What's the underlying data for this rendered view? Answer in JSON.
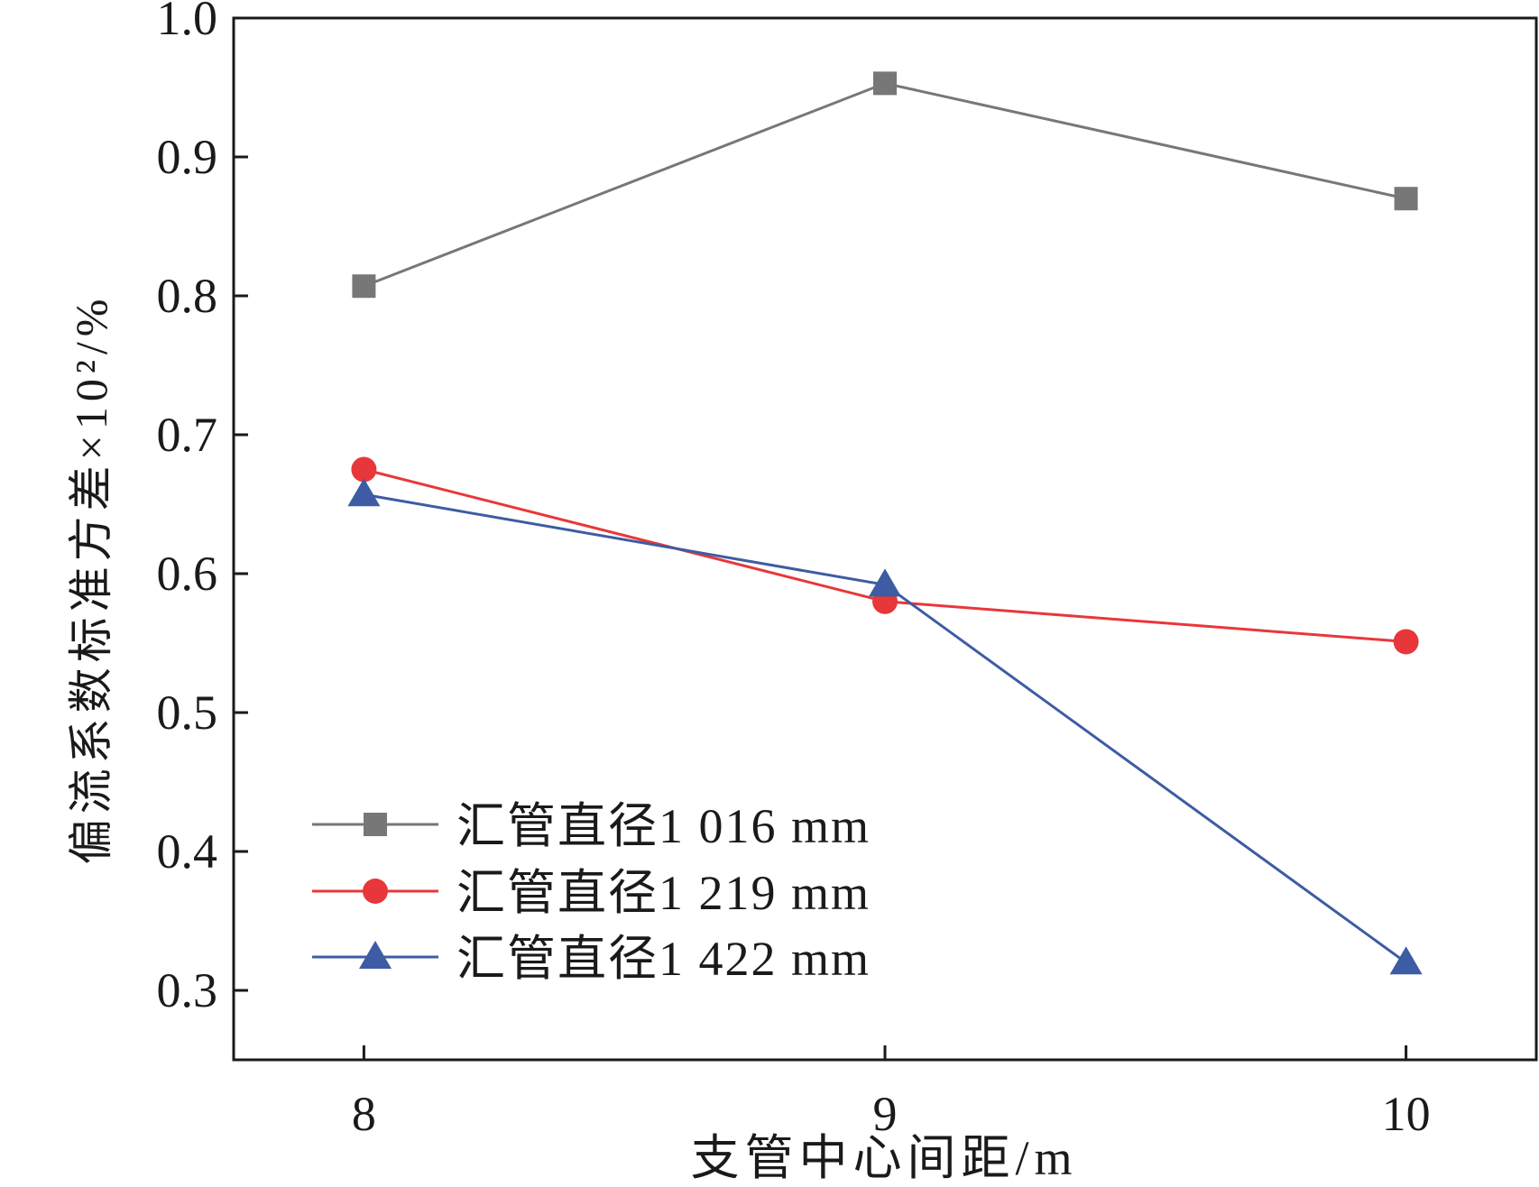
{
  "chart_data": {
    "type": "line",
    "title": "",
    "xlabel": "支管中心间距/m",
    "ylabel": "偏流系数标准方差×10²/%",
    "x": [
      8,
      9,
      10
    ],
    "x_tick_labels": [
      "8",
      "9",
      "10"
    ],
    "y_ticks": [
      0.3,
      0.4,
      0.5,
      0.6,
      0.7,
      0.8,
      0.9,
      1.0
    ],
    "y_tick_labels": [
      "0.3",
      "0.4",
      "0.5",
      "0.6",
      "0.7",
      "0.8",
      "0.9",
      "1.0"
    ],
    "xlim": [
      7.75,
      10.25
    ],
    "ylim": [
      0.25,
      1.0
    ],
    "grid": false,
    "legend_position": "bottom-left",
    "series": [
      {
        "name": "汇管直径1 016 mm",
        "color": "#777777",
        "marker": "square",
        "values": [
          0.807,
          0.953,
          0.87
        ]
      },
      {
        "name": "汇管直径1 219 mm",
        "color": "#e8373a",
        "marker": "circle",
        "values": [
          0.675,
          0.58,
          0.551
        ]
      },
      {
        "name": "汇管直径1 422 mm",
        "color": "#3d5ca3",
        "marker": "triangle",
        "values": [
          0.657,
          0.592,
          0.32
        ]
      }
    ]
  }
}
